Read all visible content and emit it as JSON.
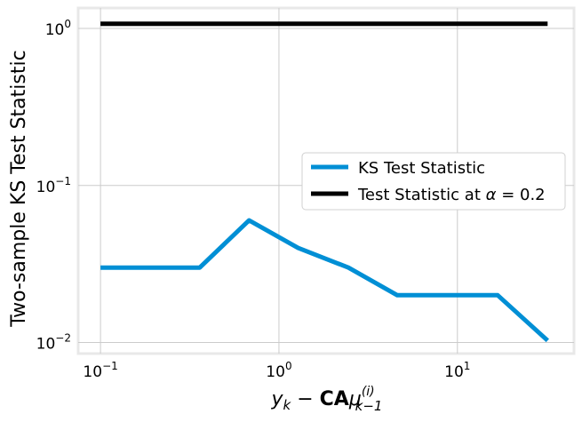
{
  "chart_data": {
    "type": "line",
    "title": "",
    "xlabel_parts": {
      "y": "y",
      "y_sub": "k",
      "minus": " − ",
      "CA": "CA",
      "mu": "μ",
      "mu_sup": "(i)",
      "mu_sub": "k−1"
    },
    "ylabel": "Two-sample KS Test Statistic",
    "xscale": "log",
    "yscale": "log",
    "xlim": [
      0.075,
      45
    ],
    "ylim": [
      0.0085,
      1.35
    ],
    "grid": true,
    "xticks": [
      {
        "value": 0.1,
        "base": "10",
        "exp": "−1"
      },
      {
        "value": 1,
        "base": "10",
        "exp": "0"
      },
      {
        "value": 10,
        "base": "10",
        "exp": "1"
      }
    ],
    "yticks": [
      {
        "value": 0.01,
        "base": "10",
        "exp": "−2"
      },
      {
        "value": 0.1,
        "base": "10",
        "exp": "−1"
      },
      {
        "value": 1,
        "base": "10",
        "exp": "0"
      }
    ],
    "legend_position": "center-right",
    "series": [
      {
        "name": "KS Test Statistic",
        "color": "#008fd5",
        "x": [
          0.1,
          0.36,
          0.68,
          1.28,
          2.45,
          4.6,
          8.7,
          16.8,
          32
        ],
        "y": [
          0.03,
          0.03,
          0.06,
          0.04,
          0.03,
          0.02,
          0.02,
          0.02,
          0.0103
        ]
      },
      {
        "name_prefix": "Test Statistic at ",
        "name_alpha": "α",
        "name_suffix": " = 0.2",
        "color": "#000000",
        "x": [
          0.1,
          32
        ],
        "y": [
          1.07,
          1.07
        ]
      }
    ]
  }
}
